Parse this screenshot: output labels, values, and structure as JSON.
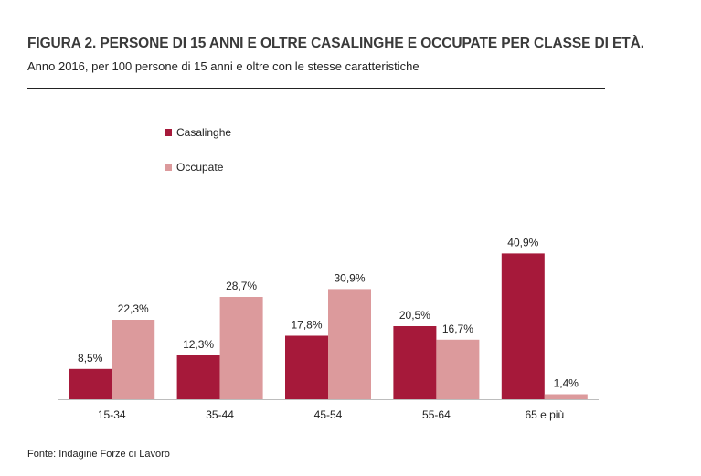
{
  "header": {
    "title": "FIGURA 2. PERSONE DI 15 ANNI E OLTRE CASALINGHE E OCCUPATE PER CLASSE DI ETÀ.",
    "subtitle": "Anno 2016, per 100 persone di 15 anni e oltre con le stesse caratteristiche"
  },
  "footer": {
    "source": "Fonte: Indagine Forze di Lavoro"
  },
  "chart_data": {
    "type": "bar",
    "title": "FIGURA 2. PERSONE DI 15 ANNI E OLTRE CASALINGHE E OCCUPATE PER CLASSE DI ETÀ.",
    "subtitle": "Anno 2016, per 100 persone di 15 anni e oltre con le stesse caratteristiche",
    "categories": [
      "15-34",
      "35-44",
      "45-54",
      "55-64",
      "65 e più"
    ],
    "series": [
      {
        "name": "Casalinghe",
        "color": "#a6193a",
        "values": [
          8.5,
          12.3,
          17.8,
          20.5,
          40.9
        ],
        "labels": [
          "8,5%",
          "12,3%",
          "17,8%",
          "20,5%",
          "40,9%"
        ]
      },
      {
        "name": "Occupate",
        "color": "#dc9a9c",
        "values": [
          22.3,
          28.7,
          30.9,
          16.7,
          1.4
        ],
        "labels": [
          "22,3%",
          "28,7%",
          "30,9%",
          "16,7%",
          "1,4%"
        ]
      }
    ],
    "legend_position": "top-left",
    "grid": false,
    "ylim": [
      0,
      41
    ],
    "source": "Fonte: Indagine Forze di Lavoro"
  }
}
